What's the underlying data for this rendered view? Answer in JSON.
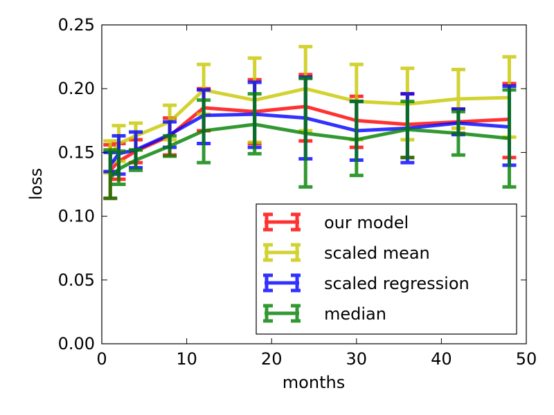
{
  "chart_data": {
    "type": "line",
    "title": "",
    "xlabel": "months",
    "ylabel": "loss",
    "xlim": [
      0,
      50
    ],
    "ylim": [
      0,
      0.25
    ],
    "xticks": [
      "0",
      "10",
      "20",
      "30",
      "40",
      "50"
    ],
    "yticks": [
      "0.00",
      "0.05",
      "0.10",
      "0.15",
      "0.20",
      "0.25"
    ],
    "legend_position": "lower-right",
    "x": [
      1,
      2,
      4,
      8,
      12,
      18,
      24,
      30,
      36,
      42,
      48
    ],
    "series": [
      {
        "name": "our model",
        "color": "#ff0000",
        "values": [
          0.136,
          0.143,
          0.151,
          0.163,
          0.185,
          0.182,
          0.186,
          0.175,
          0.172,
          0.174,
          0.176
        ],
        "err_low": [
          0.114,
          0.129,
          0.142,
          0.148,
          0.167,
          0.157,
          0.159,
          0.154,
          0.146,
          0.165,
          0.146
        ],
        "err_high": [
          0.156,
          0.157,
          0.16,
          0.177,
          0.2,
          0.207,
          0.211,
          0.194,
          0.196,
          0.184,
          0.204
        ]
      },
      {
        "name": "scaled mean",
        "color": "#c8c800",
        "values": [
          0.148,
          0.157,
          0.163,
          0.174,
          0.199,
          0.191,
          0.2,
          0.19,
          0.188,
          0.192,
          0.193
        ],
        "err_low": [
          0.134,
          0.143,
          0.152,
          0.16,
          0.18,
          0.158,
          0.167,
          0.16,
          0.16,
          0.169,
          0.162
        ],
        "err_high": [
          0.159,
          0.171,
          0.173,
          0.187,
          0.219,
          0.224,
          0.233,
          0.219,
          0.216,
          0.215,
          0.225
        ]
      },
      {
        "name": "scaled regression",
        "color": "#0000ff",
        "values": [
          0.14,
          0.149,
          0.152,
          0.164,
          0.179,
          0.18,
          0.177,
          0.167,
          0.169,
          0.173,
          0.17
        ],
        "err_low": [
          0.135,
          0.133,
          0.138,
          0.154,
          0.157,
          0.154,
          0.145,
          0.144,
          0.142,
          0.164,
          0.14
        ],
        "err_high": [
          0.15,
          0.163,
          0.166,
          0.174,
          0.199,
          0.205,
          0.209,
          0.19,
          0.196,
          0.184,
          0.202
        ]
      },
      {
        "name": "median",
        "color": "#008000",
        "values": [
          0.13,
          0.137,
          0.144,
          0.155,
          0.167,
          0.172,
          0.165,
          0.16,
          0.168,
          0.165,
          0.161
        ],
        "err_low": [
          0.114,
          0.125,
          0.136,
          0.147,
          0.142,
          0.149,
          0.123,
          0.132,
          0.146,
          0.148,
          0.123
        ],
        "err_high": [
          0.152,
          0.151,
          0.152,
          0.163,
          0.191,
          0.196,
          0.208,
          0.19,
          0.19,
          0.182,
          0.199
        ]
      }
    ]
  }
}
